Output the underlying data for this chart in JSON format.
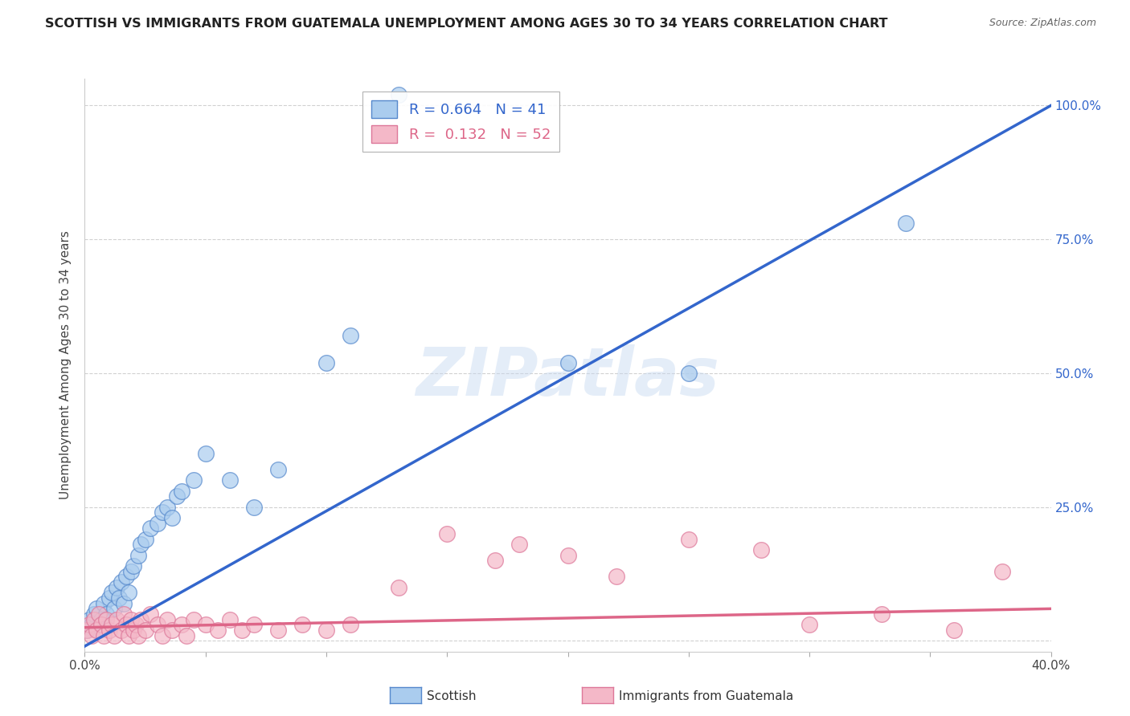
{
  "title": "SCOTTISH VS IMMIGRANTS FROM GUATEMALA UNEMPLOYMENT AMONG AGES 30 TO 34 YEARS CORRELATION CHART",
  "source": "Source: ZipAtlas.com",
  "ylabel": "Unemployment Among Ages 30 to 34 years",
  "xlim": [
    0.0,
    0.4
  ],
  "ylim": [
    -0.02,
    1.05
  ],
  "R_scottish": 0.664,
  "N_scottish": 41,
  "R_guatemala": 0.132,
  "N_guatemala": 52,
  "scottish_fill": "#aaccee",
  "scottish_edge": "#5588cc",
  "guatemala_fill": "#f4b8c8",
  "guatemala_edge": "#dd7799",
  "line_scottish_color": "#3366cc",
  "line_guatemala_color": "#dd6688",
  "watermark": "ZIPatlas",
  "background_color": "#ffffff",
  "sc_line_x0": 0.0,
  "sc_line_y0": -0.01,
  "sc_line_x1": 0.4,
  "sc_line_y1": 1.0,
  "gt_line_x0": 0.0,
  "gt_line_y0": 0.025,
  "gt_line_x1": 0.4,
  "gt_line_y1": 0.06,
  "scottish_x": [
    0.001,
    0.002,
    0.003,
    0.004,
    0.005,
    0.006,
    0.007,
    0.008,
    0.009,
    0.01,
    0.011,
    0.012,
    0.013,
    0.014,
    0.015,
    0.016,
    0.017,
    0.018,
    0.019,
    0.02,
    0.022,
    0.023,
    0.025,
    0.027,
    0.03,
    0.032,
    0.034,
    0.036,
    0.038,
    0.04,
    0.045,
    0.05,
    0.06,
    0.07,
    0.08,
    0.1,
    0.11,
    0.13,
    0.2,
    0.25,
    0.34
  ],
  "scottish_y": [
    0.02,
    0.04,
    0.03,
    0.05,
    0.06,
    0.02,
    0.04,
    0.07,
    0.05,
    0.08,
    0.09,
    0.06,
    0.1,
    0.08,
    0.11,
    0.07,
    0.12,
    0.09,
    0.13,
    0.14,
    0.16,
    0.18,
    0.19,
    0.21,
    0.22,
    0.24,
    0.25,
    0.23,
    0.27,
    0.28,
    0.3,
    0.35,
    0.3,
    0.25,
    0.32,
    0.52,
    0.57,
    1.02,
    0.52,
    0.5,
    0.78
  ],
  "guatemala_x": [
    0.001,
    0.002,
    0.003,
    0.004,
    0.005,
    0.006,
    0.007,
    0.008,
    0.009,
    0.01,
    0.011,
    0.012,
    0.013,
    0.015,
    0.016,
    0.017,
    0.018,
    0.019,
    0.02,
    0.021,
    0.022,
    0.023,
    0.025,
    0.027,
    0.03,
    0.032,
    0.034,
    0.036,
    0.04,
    0.042,
    0.045,
    0.05,
    0.055,
    0.06,
    0.065,
    0.07,
    0.08,
    0.09,
    0.1,
    0.11,
    0.13,
    0.15,
    0.17,
    0.18,
    0.2,
    0.22,
    0.25,
    0.28,
    0.3,
    0.33,
    0.36,
    0.38
  ],
  "guatemala_y": [
    0.02,
    0.03,
    0.01,
    0.04,
    0.02,
    0.05,
    0.03,
    0.01,
    0.04,
    0.02,
    0.03,
    0.01,
    0.04,
    0.02,
    0.05,
    0.03,
    0.01,
    0.04,
    0.02,
    0.03,
    0.01,
    0.04,
    0.02,
    0.05,
    0.03,
    0.01,
    0.04,
    0.02,
    0.03,
    0.01,
    0.04,
    0.03,
    0.02,
    0.04,
    0.02,
    0.03,
    0.02,
    0.03,
    0.02,
    0.03,
    0.1,
    0.2,
    0.15,
    0.18,
    0.16,
    0.12,
    0.19,
    0.17,
    0.03,
    0.05,
    0.02,
    0.13
  ]
}
